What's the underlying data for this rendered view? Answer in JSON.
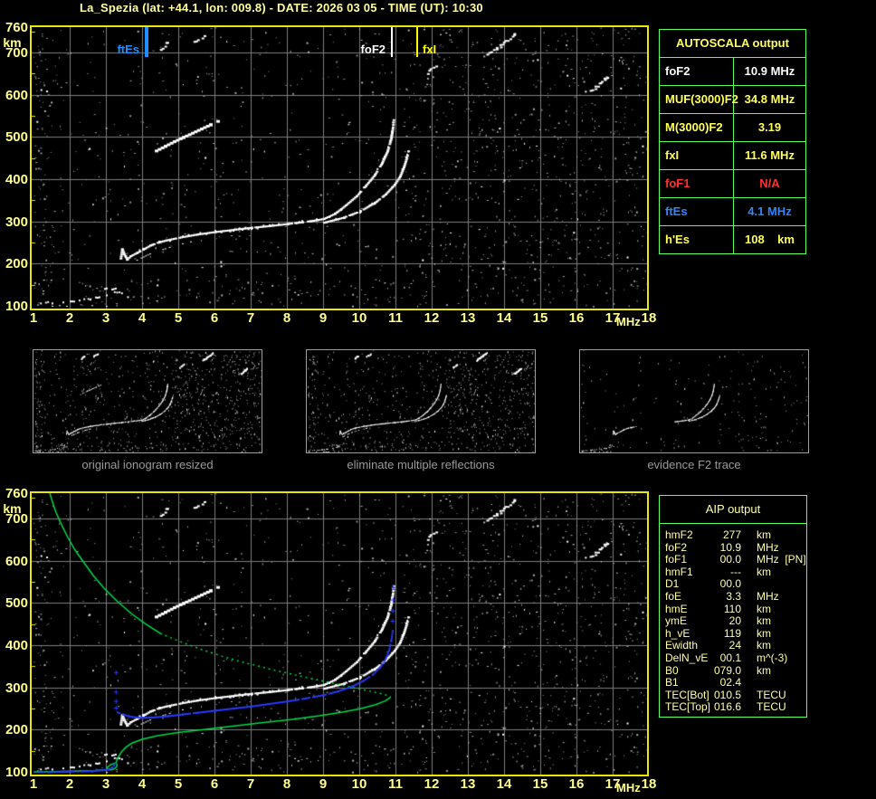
{
  "title": "La_Spezia (lat: +44.1, lon: 009.8) - DATE: 2026 03 05 - TIME (UT): 10:30",
  "colors": {
    "background": "#000000",
    "plot_border": "#e8e800",
    "grid": "#7d7d7d",
    "axis_text": "#ffff8c",
    "table_border": "#5aff5a",
    "white": "#ffffff",
    "yellow": "#ffff55",
    "red": "#ff3232",
    "blue": "#2f86ff",
    "blue_line": "#1f8fff",
    "fxi_yellow": "#ffff00",
    "green_profile": "#00d94a",
    "blue_trace": "#2a3bff",
    "caption": "#9a9a9a",
    "aip_text": "#ffffa6",
    "noise_gray": "#8c8c8c"
  },
  "autoscala_table": {
    "header": "AUTOSCALA output",
    "rows": [
      {
        "label": "foF2",
        "value": "10.9 MHz",
        "color_key": "white"
      },
      {
        "label": "MUF(3000)F2",
        "value": "34.8 MHz",
        "color_key": "yellow"
      },
      {
        "label": "M(3000)F2",
        "value": "3.19",
        "color_key": "yellow"
      },
      {
        "label": "fxI",
        "value": "11.6 MHz",
        "color_key": "yellow"
      },
      {
        "label": "foF1",
        "value": "N/A",
        "color_key": "red"
      },
      {
        "label": "ftEs",
        "value": "4.1 MHz",
        "color_key": "blue"
      },
      {
        "label": "h'Es",
        "value": "108    km",
        "color_key": "yellow"
      }
    ]
  },
  "aip_table": {
    "header": "AIP output",
    "rows": [
      {
        "label": "hmF2",
        "value": "277",
        "unit": "km"
      },
      {
        "label": "foF2",
        "value": "10.9",
        "unit": "MHz"
      },
      {
        "label": "foF1",
        "value": "00.0",
        "unit": "MHz  [PN]"
      },
      {
        "label": "hmF1",
        "value": "---",
        "unit": "km"
      },
      {
        "label": "D1",
        "value": "00.0",
        "unit": ""
      },
      {
        "label": "foE",
        "value": "3.3",
        "unit": "MHz"
      },
      {
        "label": "hmE",
        "value": "110",
        "unit": "km"
      },
      {
        "label": "ymE",
        "value": "20",
        "unit": "km"
      },
      {
        "label": "h_vE",
        "value": "119",
        "unit": "km"
      },
      {
        "label": "Ewidth",
        "value": "24",
        "unit": "km"
      },
      {
        "label": "DelN_vE",
        "value": "00.1",
        "unit": "m^(-3)"
      },
      {
        "label": "B0",
        "value": "079.0",
        "unit": "km"
      },
      {
        "label": "B1",
        "value": "02.4",
        "unit": ""
      },
      {
        "label": "TEC[Bot]",
        "value": "010.5",
        "unit": "TECU"
      },
      {
        "label": "TEC[Top]",
        "value": "016.6",
        "unit": "TECU"
      }
    ]
  },
  "thumbnails": [
    {
      "caption": "original ionogram resized"
    },
    {
      "caption": "eliminate multiple reflections"
    },
    {
      "caption": "evidence F2 trace"
    }
  ],
  "chart_data": {
    "type": "scatter",
    "title": "ionogram virtual height vs frequency",
    "xlabel": "MHz",
    "ylabel": "km",
    "xlim": [
      1,
      18
    ],
    "ylim": [
      100,
      760
    ],
    "x_ticks": [
      1,
      2,
      3,
      4,
      5,
      6,
      7,
      8,
      9,
      10,
      11,
      12,
      13,
      14,
      15,
      16,
      17,
      18
    ],
    "y_ticks": [
      760,
      700,
      600,
      500,
      400,
      300,
      200,
      100
    ],
    "markers": [
      {
        "label": "ftEs",
        "freq": 4.1,
        "color_key": "blue_line",
        "side": "left"
      },
      {
        "label": "foF2",
        "freq": 10.9,
        "color_key": "white",
        "side": "left"
      },
      {
        "label": "fxI",
        "freq": 11.6,
        "color_key": "fxi_yellow",
        "side": "right"
      }
    ],
    "traces": {
      "f2_trace": [
        [
          3.38,
          214
        ],
        [
          3.42,
          236
        ],
        [
          3.48,
          224
        ],
        [
          3.56,
          212
        ],
        [
          3.66,
          220
        ],
        [
          3.82,
          227
        ],
        [
          4.0,
          235
        ],
        [
          4.2,
          245
        ],
        [
          4.45,
          253
        ],
        [
          4.75,
          259
        ],
        [
          5.1,
          265
        ],
        [
          5.5,
          271
        ],
        [
          6.0,
          277
        ],
        [
          6.5,
          282
        ],
        [
          7.0,
          287
        ],
        [
          7.5,
          291
        ],
        [
          8.0,
          296
        ],
        [
          8.4,
          300
        ],
        [
          8.8,
          305
        ],
        [
          9.0,
          308
        ]
      ],
      "o_branch": [
        [
          9.0,
          308
        ],
        [
          9.3,
          320
        ],
        [
          9.6,
          340
        ],
        [
          9.9,
          362
        ],
        [
          10.15,
          386
        ],
        [
          10.4,
          412
        ],
        [
          10.6,
          440
        ],
        [
          10.75,
          468
        ],
        [
          10.85,
          498
        ],
        [
          10.9,
          525
        ],
        [
          10.92,
          542
        ]
      ],
      "x_branch": [
        [
          9.0,
          299
        ],
        [
          9.5,
          310
        ],
        [
          10.0,
          326
        ],
        [
          10.4,
          346
        ],
        [
          10.7,
          366
        ],
        [
          10.95,
          389
        ],
        [
          11.1,
          409
        ],
        [
          11.2,
          430
        ],
        [
          11.28,
          452
        ],
        [
          11.33,
          468
        ]
      ],
      "echo": [
        [
          3.6,
          198
        ],
        [
          3.9,
          212
        ],
        [
          4.2,
          224
        ],
        [
          4.5,
          233
        ],
        [
          4.8,
          241
        ],
        [
          5.1,
          248
        ],
        [
          5.4,
          254
        ]
      ],
      "second_reflection": [
        [
          4.35,
          470
        ],
        [
          4.6,
          481
        ],
        [
          4.85,
          492
        ],
        [
          5.1,
          502
        ],
        [
          5.35,
          512
        ],
        [
          5.6,
          522
        ],
        [
          5.85,
          532
        ],
        [
          6.05,
          540
        ]
      ],
      "es_dashes": [
        [
          1.05,
          1.18,
          107
        ],
        [
          1.32,
          1.5,
          109
        ],
        [
          1.7,
          1.85,
          111
        ],
        [
          2.0,
          2.25,
          114
        ],
        [
          2.38,
          2.55,
          117
        ],
        [
          2.7,
          2.95,
          122
        ],
        [
          3.0,
          3.2,
          128
        ],
        [
          3.22,
          3.42,
          134
        ],
        [
          2.95,
          3.3,
          143
        ]
      ],
      "e_bottom_white": [
        [
          1.0,
          3.2,
          101
        ]
      ]
    },
    "profile": {
      "topside_solid": [
        [
          1.45,
          760
        ],
        [
          1.52,
          740
        ],
        [
          1.62,
          715
        ],
        [
          1.76,
          688
        ],
        [
          1.95,
          655
        ],
        [
          2.15,
          625
        ],
        [
          2.4,
          595
        ],
        [
          2.65,
          565
        ],
        [
          2.95,
          535
        ],
        [
          3.3,
          505
        ],
        [
          3.7,
          475
        ],
        [
          4.1,
          450
        ],
        [
          4.5,
          428
        ]
      ],
      "topside_dotted": [
        [
          4.5,
          428
        ],
        [
          5.0,
          410
        ],
        [
          5.6,
          391
        ],
        [
          6.2,
          374
        ],
        [
          6.9,
          357
        ],
        [
          7.6,
          342
        ],
        [
          8.3,
          328
        ],
        [
          9.0,
          315
        ],
        [
          9.7,
          302
        ],
        [
          10.3,
          291
        ],
        [
          10.7,
          283
        ],
        [
          10.87,
          278
        ]
      ],
      "bottomside_solid": [
        [
          10.87,
          277
        ],
        [
          10.72,
          268
        ],
        [
          10.45,
          259
        ],
        [
          10.05,
          250
        ],
        [
          9.5,
          241
        ],
        [
          8.9,
          233
        ],
        [
          8.1,
          224
        ],
        [
          7.3,
          216
        ],
        [
          6.5,
          208
        ],
        [
          5.7,
          200
        ],
        [
          5.0,
          193
        ],
        [
          4.4,
          185
        ],
        [
          4.0,
          177
        ],
        [
          3.72,
          168
        ],
        [
          3.55,
          158
        ],
        [
          3.43,
          147
        ],
        [
          3.35,
          136
        ],
        [
          3.3,
          127
        ],
        [
          3.28,
          121
        ]
      ],
      "e_loop": [
        [
          3.28,
          121
        ],
        [
          3.31,
          116
        ],
        [
          3.29,
          111
        ],
        [
          3.22,
          107
        ],
        [
          3.12,
          105
        ],
        [
          3.03,
          107
        ],
        [
          3.05,
          112
        ],
        [
          3.13,
          117
        ],
        [
          3.22,
          120
        ],
        [
          3.28,
          121
        ]
      ],
      "e_bottom": [
        [
          3.03,
          105
        ],
        [
          2.7,
          103
        ],
        [
          2.3,
          102
        ],
        [
          1.8,
          101
        ],
        [
          1.3,
          100
        ],
        [
          1.0,
          100
        ]
      ]
    },
    "restored": {
      "e_dense": [
        [
          1.0,
          101
        ],
        [
          1.4,
          101
        ],
        [
          1.8,
          102
        ],
        [
          2.2,
          103
        ],
        [
          2.6,
          104
        ],
        [
          2.9,
          106
        ],
        [
          3.05,
          108
        ],
        [
          3.15,
          112
        ],
        [
          3.2,
          117
        ],
        [
          3.24,
          122
        ]
      ],
      "f_dense": [
        [
          3.3,
          243
        ],
        [
          3.45,
          238
        ],
        [
          3.6,
          234
        ],
        [
          3.8,
          231
        ],
        [
          4.0,
          230
        ],
        [
          4.3,
          231
        ],
        [
          4.7,
          234
        ],
        [
          5.1,
          238
        ],
        [
          5.5,
          242
        ],
        [
          6.0,
          247
        ],
        [
          6.5,
          252
        ],
        [
          7.0,
          257
        ],
        [
          7.5,
          263
        ],
        [
          8.0,
          269
        ],
        [
          8.5,
          276
        ],
        [
          9.0,
          284
        ],
        [
          9.4,
          293
        ],
        [
          9.8,
          305
        ],
        [
          10.1,
          318
        ],
        [
          10.35,
          332
        ],
        [
          10.55,
          349
        ],
        [
          10.7,
          368
        ],
        [
          10.8,
          390
        ],
        [
          10.86,
          412
        ],
        [
          10.9,
          436
        ]
      ],
      "sparse_marks": [
        [
          3.27,
          252
        ],
        [
          3.27,
          268
        ],
        [
          3.27,
          290
        ],
        [
          3.27,
          336
        ],
        [
          10.91,
          458
        ],
        [
          10.92,
          482
        ],
        [
          10.92,
          508
        ],
        [
          10.93,
          537
        ]
      ]
    },
    "noise": {
      "seed": 42,
      "sparse_seed": 99,
      "regions": [
        {
          "f": [
            1,
            18
          ],
          "km": [
            100,
            760
          ],
          "n": 700
        },
        {
          "f": [
            11.2,
            18
          ],
          "km": [
            100,
            760
          ],
          "n": 620
        },
        {
          "f": [
            1,
            1.55
          ],
          "km": [
            100,
            760
          ],
          "n": 90
        },
        {
          "f": [
            2.2,
            11
          ],
          "km": [
            100,
            165
          ],
          "n": 90
        },
        {
          "f": [
            1.5,
            11
          ],
          "km": [
            165,
            760
          ],
          "n": 120
        }
      ],
      "clusters": [
        {
          "f": [
            13.55,
            14.35
          ],
          "km": [
            698,
            748
          ],
          "n": 16
        },
        {
          "f": [
            4.5,
            4.75
          ],
          "km": [
            710,
            730
          ],
          "n": 5
        },
        {
          "f": [
            16.4,
            16.9
          ],
          "km": [
            612,
            648
          ],
          "n": 12
        },
        {
          "f": [
            11.85,
            12.15
          ],
          "km": [
            652,
            676
          ],
          "n": 5
        },
        {
          "f": [
            5.4,
            5.75
          ],
          "km": [
            725,
            742
          ],
          "n": 5
        }
      ]
    }
  }
}
